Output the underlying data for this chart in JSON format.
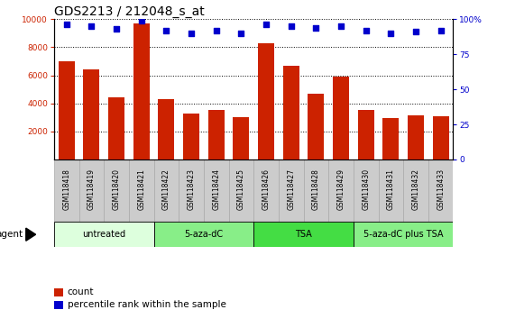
{
  "title": "GDS2213 / 212048_s_at",
  "samples": [
    "GSM118418",
    "GSM118419",
    "GSM118420",
    "GSM118421",
    "GSM118422",
    "GSM118423",
    "GSM118424",
    "GSM118425",
    "GSM118426",
    "GSM118427",
    "GSM118428",
    "GSM118429",
    "GSM118430",
    "GSM118431",
    "GSM118432",
    "GSM118433"
  ],
  "counts": [
    7000,
    6400,
    4400,
    9700,
    4300,
    3300,
    3550,
    3000,
    8300,
    6700,
    4700,
    5900,
    3550,
    2950,
    3150,
    3100
  ],
  "percentiles": [
    96,
    95,
    93,
    99,
    92,
    90,
    92,
    90,
    96,
    95,
    94,
    95,
    92,
    90,
    91,
    92
  ],
  "bar_color": "#cc2200",
  "dot_color": "#0000cc",
  "groups": [
    {
      "label": "untreated",
      "start": 0,
      "end": 4,
      "color": "#ddffdd"
    },
    {
      "label": "5-aza-dC",
      "start": 4,
      "end": 8,
      "color": "#88ee88"
    },
    {
      "label": "TSA",
      "start": 8,
      "end": 12,
      "color": "#44dd44"
    },
    {
      "label": "5-aza-dC plus TSA",
      "start": 12,
      "end": 16,
      "color": "#88ee88"
    }
  ],
  "ylim_left": [
    0,
    10000
  ],
  "ylim_right": [
    0,
    100
  ],
  "yticks_left": [
    2000,
    4000,
    6000,
    8000,
    10000
  ],
  "yticks_right": [
    0,
    25,
    50,
    75,
    100
  ],
  "ylabel_right_labels": [
    "0",
    "25",
    "50",
    "75",
    "100%"
  ],
  "background_color": "#ffffff",
  "plot_bg": "#ffffff",
  "grid_color": "#000000",
  "title_fontsize": 10,
  "tick_fontsize": 6.5,
  "agent_label": "agent",
  "legend_count_label": "count",
  "legend_pct_label": "percentile rank within the sample",
  "sample_box_color": "#cccccc",
  "sample_box_edge": "#aaaaaa"
}
